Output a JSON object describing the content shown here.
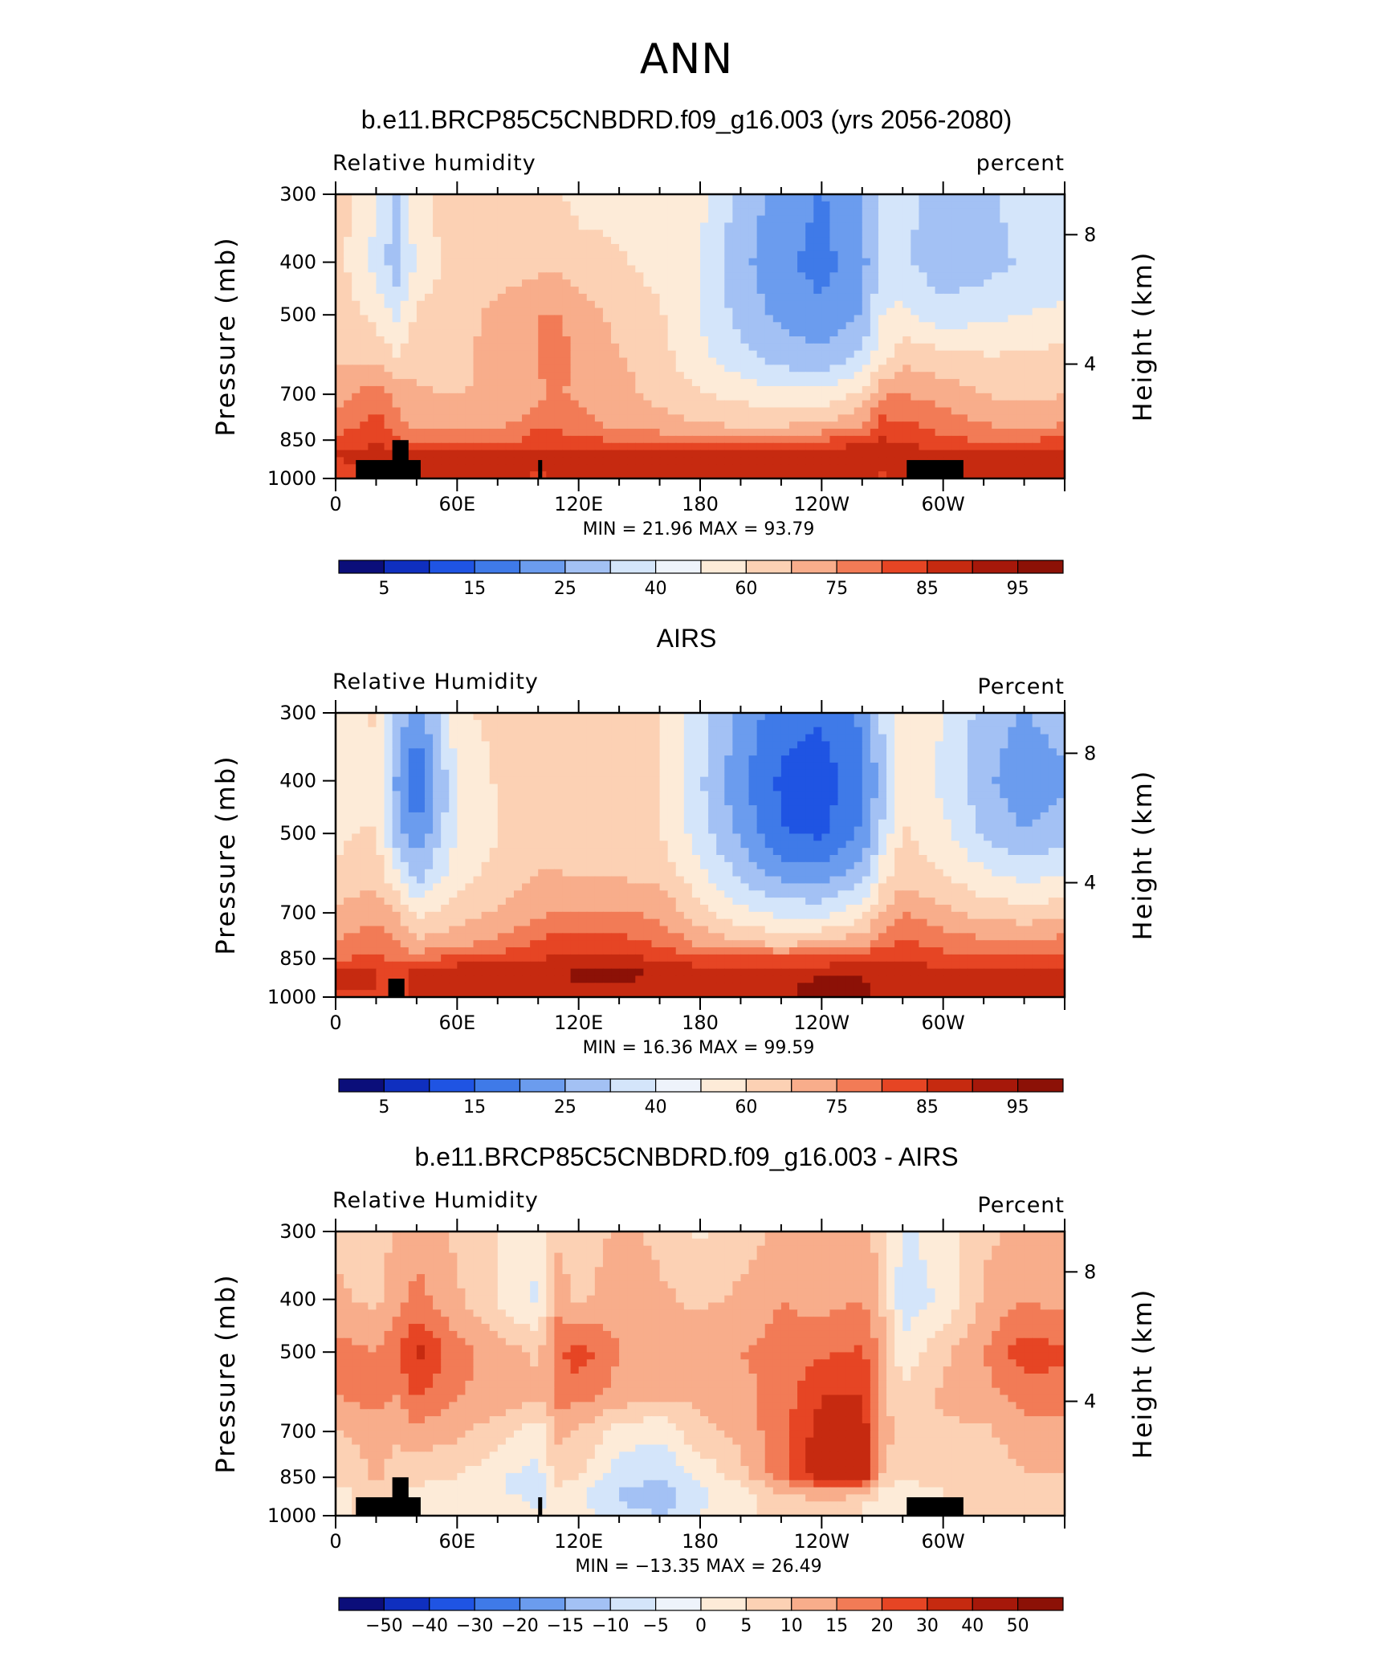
{
  "figure": {
    "title": "ANN"
  },
  "colors": {
    "scale": [
      "#0b0e7a",
      "#0f2fbf",
      "#1f54e3",
      "#3f7ae8",
      "#6b9cee",
      "#a3c1f4",
      "#d4e5fa",
      "#fdebd8",
      "#fcd1b4",
      "#f8ad8b",
      "#f27b56",
      "#e64524",
      "#c62a10",
      "#8c1106"
    ],
    "terrain": "#000000"
  },
  "panels": [
    {
      "title": "b.e11.BRCP85C5CNBDRD.f09_g16.003 (yrs 2056-2080)",
      "left_label": "Relative  humidity",
      "right_label": "percent",
      "stats": {
        "min_label": "MIN =",
        "min": "21.96",
        "max_label": "MAX =",
        "max": "93.79"
      },
      "colorbar_labels": [
        "5",
        "15",
        "25",
        "40",
        "60",
        "75",
        "85",
        "95"
      ],
      "shift": 0
    },
    {
      "title": "AIRS",
      "left_label": "Relative  Humidity",
      "right_label": "Percent",
      "stats": {
        "min_label": "MIN =",
        "min": "16.36",
        "max_label": "MAX =",
        "max": "99.59"
      },
      "colorbar_labels": [
        "5",
        "15",
        "25",
        "40",
        "60",
        "75",
        "85",
        "95"
      ],
      "shift": 1
    },
    {
      "title": "b.e11.BRCP85C5CNBDRD.f09_g16.003 - AIRS",
      "left_label": "Relative  Humidity",
      "right_label": "Percent",
      "stats": {
        "min_label": "MIN =",
        "min": "−13.35",
        "max_label": "MAX =",
        "max": "26.49"
      },
      "colorbar_labels": [
        "−50",
        "−40",
        "−30",
        "−20",
        "−15",
        "−10",
        "−5",
        "0",
        "5",
        "10",
        "15",
        "20",
        "30",
        "40",
        "50"
      ],
      "shift": 2
    }
  ],
  "chart_data": [
    {
      "type": "heatmap",
      "title": "b.e11.BRCP85C5CNBDRD.f09_g16.003 (yrs 2056-2080)",
      "variable": "Relative humidity",
      "units": "percent",
      "ylabel": "Pressure (mb)",
      "ylabel_right": "Height (km)",
      "x_ticks": [
        "0",
        "60E",
        "120E",
        "180",
        "120W",
        "60W"
      ],
      "y_ticks": [
        300,
        400,
        500,
        700,
        850,
        1000
      ],
      "y_right_ticks": [
        8,
        4
      ],
      "ylim": [
        1000,
        300
      ],
      "levels": [
        5,
        15,
        25,
        40,
        60,
        75,
        85,
        95
      ],
      "min": 21.96,
      "max": 93.79,
      "terrain_blocks": [
        [
          10,
          42,
          925
        ],
        [
          28,
          36,
          850
        ],
        [
          100,
          102,
          925
        ],
        [
          282,
          310,
          925
        ]
      ],
      "lon": [
        0,
        20,
        30,
        40,
        60,
        90,
        100,
        110,
        120,
        140,
        160,
        180,
        200,
        220,
        240,
        260,
        270,
        280,
        300,
        320,
        340,
        360
      ],
      "lev": [
        300,
        400,
        500,
        600,
        700,
        800,
        850,
        900,
        950,
        1000
      ],
      "values": [
        [
          62,
          50,
          42,
          55,
          62,
          60,
          58,
          58,
          55,
          55,
          56,
          52,
          40,
          33,
          28,
          35,
          48,
          45,
          40,
          42,
          45,
          46
        ],
        [
          60,
          48,
          38,
          52,
          60,
          62,
          62,
          63,
          60,
          58,
          55,
          50,
          38,
          30,
          26,
          33,
          46,
          44,
          38,
          40,
          44,
          45
        ],
        [
          62,
          55,
          48,
          58,
          62,
          68,
          72,
          72,
          68,
          62,
          58,
          50,
          40,
          34,
          30,
          36,
          50,
          52,
          46,
          48,
          50,
          52
        ],
        [
          64,
          62,
          58,
          62,
          63,
          68,
          72,
          74,
          70,
          65,
          60,
          52,
          45,
          40,
          38,
          45,
          55,
          62,
          60,
          58,
          58,
          60
        ],
        [
          68,
          75,
          70,
          65,
          64,
          66,
          70,
          72,
          70,
          67,
          62,
          58,
          55,
          52,
          52,
          58,
          70,
          72,
          68,
          64,
          62,
          64
        ],
        [
          74,
          82,
          74,
          70,
          70,
          72,
          78,
          77,
          74,
          70,
          68,
          65,
          64,
          64,
          66,
          72,
          82,
          80,
          76,
          72,
          70,
          72
        ],
        [
          80,
          86,
          80,
          76,
          76,
          78,
          82,
          82,
          80,
          78,
          76,
          74,
          74,
          75,
          78,
          82,
          86,
          84,
          80,
          78,
          78,
          80
        ],
        [
          86,
          88,
          86,
          86,
          88,
          88,
          86,
          87,
          88,
          88,
          88,
          88,
          89,
          90,
          91,
          92,
          88,
          90,
          88,
          88,
          90,
          89
        ],
        [
          85,
          86,
          86,
          87,
          88,
          88,
          86,
          87,
          88,
          87,
          87,
          88,
          90,
          92,
          92,
          90,
          86,
          88,
          87,
          88,
          90,
          88
        ],
        [
          84,
          85,
          85,
          86,
          87,
          87,
          85,
          86,
          87,
          86,
          86,
          87,
          88,
          90,
          90,
          88,
          85,
          87,
          86,
          87,
          89,
          87
        ]
      ]
    },
    {
      "type": "heatmap",
      "title": "AIRS",
      "variable": "Relative Humidity",
      "units": "Percent",
      "ylabel": "Pressure (mb)",
      "ylabel_right": "Height (km)",
      "x_ticks": [
        "0",
        "60E",
        "120E",
        "180",
        "120W",
        "60W"
      ],
      "y_ticks": [
        300,
        400,
        500,
        700,
        850,
        1000
      ],
      "y_right_ticks": [
        8,
        4
      ],
      "ylim": [
        1000,
        300
      ],
      "levels": [
        5,
        15,
        25,
        40,
        60,
        75,
        85,
        95
      ],
      "min": 16.36,
      "max": 99.59,
      "terrain_blocks": [
        [
          26,
          34,
          925
        ]
      ],
      "lon": [
        0,
        20,
        30,
        40,
        60,
        90,
        100,
        110,
        120,
        140,
        160,
        180,
        200,
        220,
        240,
        260,
        270,
        280,
        300,
        320,
        340,
        360
      ],
      "lev": [
        300,
        400,
        500,
        600,
        700,
        800,
        850,
        900,
        950,
        1000
      ],
      "values": [
        [
          55,
          58,
          42,
          30,
          55,
          62,
          64,
          60,
          60,
          60,
          58,
          46,
          34,
          24,
          22,
          30,
          44,
          58,
          50,
          40,
          35,
          40
        ],
        [
          52,
          55,
          35,
          22,
          50,
          62,
          64,
          62,
          62,
          62,
          58,
          44,
          30,
          20,
          18,
          26,
          40,
          56,
          48,
          38,
          30,
          34
        ],
        [
          56,
          58,
          40,
          30,
          50,
          60,
          62,
          60,
          60,
          60,
          58,
          46,
          34,
          22,
          20,
          30,
          44,
          58,
          52,
          42,
          36,
          40
        ],
        [
          58,
          62,
          52,
          40,
          55,
          62,
          65,
          65,
          64,
          64,
          62,
          52,
          42,
          34,
          32,
          40,
          55,
          62,
          58,
          52,
          48,
          50
        ],
        [
          66,
          70,
          64,
          56,
          60,
          68,
          70,
          72,
          72,
          72,
          70,
          60,
          52,
          48,
          48,
          54,
          64,
          72,
          66,
          62,
          60,
          62
        ],
        [
          72,
          76,
          72,
          66,
          70,
          76,
          80,
          82,
          84,
          82,
          78,
          70,
          66,
          64,
          66,
          70,
          78,
          80,
          76,
          74,
          74,
          75
        ],
        [
          78,
          80,
          78,
          76,
          82,
          84,
          86,
          86,
          88,
          88,
          85,
          80,
          80,
          80,
          80,
          82,
          86,
          84,
          82,
          80,
          80,
          80
        ],
        [
          86,
          86,
          84,
          88,
          90,
          92,
          92,
          92,
          94,
          94,
          92,
          90,
          90,
          91,
          92,
          92,
          90,
          90,
          88,
          88,
          88,
          88
        ],
        [
          86,
          86,
          84,
          88,
          90,
          92,
          92,
          92,
          93,
          93,
          92,
          90,
          90,
          92,
          94,
          94,
          90,
          90,
          88,
          88,
          90,
          88
        ],
        [
          85,
          85,
          84,
          87,
          89,
          90,
          90,
          90,
          91,
          91,
          90,
          89,
          89,
          92,
          94,
          94,
          89,
          89,
          87,
          87,
          89,
          87
        ]
      ]
    },
    {
      "type": "heatmap",
      "title": "b.e11.BRCP85C5CNBDRD.f09_g16.003 - AIRS",
      "variable": "Relative Humidity",
      "units": "Percent",
      "ylabel": "Pressure (mb)",
      "ylabel_right": "Height (km)",
      "x_ticks": [
        "0",
        "60E",
        "120E",
        "180",
        "120W",
        "60W"
      ],
      "y_ticks": [
        300,
        400,
        500,
        700,
        850,
        1000
      ],
      "y_right_ticks": [
        8,
        4
      ],
      "ylim": [
        1000,
        300
      ],
      "levels": [
        -50,
        -40,
        -30,
        -20,
        -15,
        -10,
        -5,
        0,
        5,
        10,
        15,
        20,
        30,
        40,
        50
      ],
      "min": -13.35,
      "max": 26.49,
      "terrain_blocks": [
        [
          10,
          42,
          925
        ],
        [
          28,
          36,
          850
        ],
        [
          100,
          102,
          925
        ],
        [
          282,
          310,
          925
        ]
      ],
      "lon": [
        0,
        20,
        30,
        40,
        60,
        90,
        100,
        110,
        120,
        140,
        160,
        180,
        200,
        220,
        240,
        260,
        270,
        280,
        300,
        320,
        340,
        360
      ],
      "lev": [
        300,
        400,
        500,
        600,
        700,
        800,
        850,
        900,
        950,
        1000
      ],
      "values": [
        [
          4,
          2,
          6,
          8,
          4,
          -2,
          -4,
          4,
          2,
          6,
          4,
          -1,
          3,
          6,
          6,
          8,
          2,
          -6,
          -3,
          4,
          6,
          5
        ],
        [
          6,
          4,
          8,
          12,
          6,
          -4,
          -6,
          8,
          4,
          8,
          6,
          4,
          6,
          10,
          8,
          10,
          4,
          -8,
          -4,
          6,
          10,
          8
        ],
        [
          12,
          10,
          14,
          22,
          12,
          6,
          4,
          14,
          18,
          10,
          8,
          8,
          10,
          12,
          14,
          16,
          8,
          -4,
          4,
          10,
          18,
          16
        ],
        [
          10,
          12,
          10,
          16,
          10,
          8,
          6,
          12,
          12,
          8,
          6,
          6,
          8,
          12,
          20,
          20,
          6,
          2,
          6,
          8,
          12,
          12
        ],
        [
          4,
          8,
          6,
          8,
          6,
          0,
          -4,
          6,
          4,
          -2,
          -4,
          4,
          6,
          14,
          22,
          24,
          8,
          2,
          4,
          4,
          8,
          8
        ],
        [
          2,
          6,
          4,
          4,
          2,
          -4,
          -6,
          4,
          2,
          -6,
          -8,
          -2,
          4,
          14,
          24,
          26,
          6,
          2,
          4,
          2,
          6,
          6
        ],
        [
          2,
          6,
          4,
          2,
          0,
          -6,
          -8,
          2,
          0,
          -8,
          -10,
          -4,
          2,
          12,
          22,
          24,
          4,
          0,
          4,
          2,
          4,
          4
        ],
        [
          -2,
          4,
          2,
          -2,
          -2,
          -6,
          -8,
          -2,
          -4,
          -10,
          -12,
          -6,
          -2,
          6,
          10,
          10,
          -2,
          -2,
          0,
          0,
          2,
          2
        ],
        [
          -2,
          2,
          2,
          -2,
          -2,
          -4,
          -6,
          -2,
          -4,
          -10,
          -12,
          -6,
          -2,
          2,
          2,
          0,
          -2,
          -2,
          0,
          0,
          0,
          0
        ],
        [
          -1,
          1,
          1,
          -1,
          -1,
          -3,
          -5,
          -1,
          -3,
          -8,
          -10,
          -5,
          -1,
          1,
          1,
          0,
          -1,
          -1,
          0,
          0,
          0,
          0
        ]
      ]
    }
  ]
}
